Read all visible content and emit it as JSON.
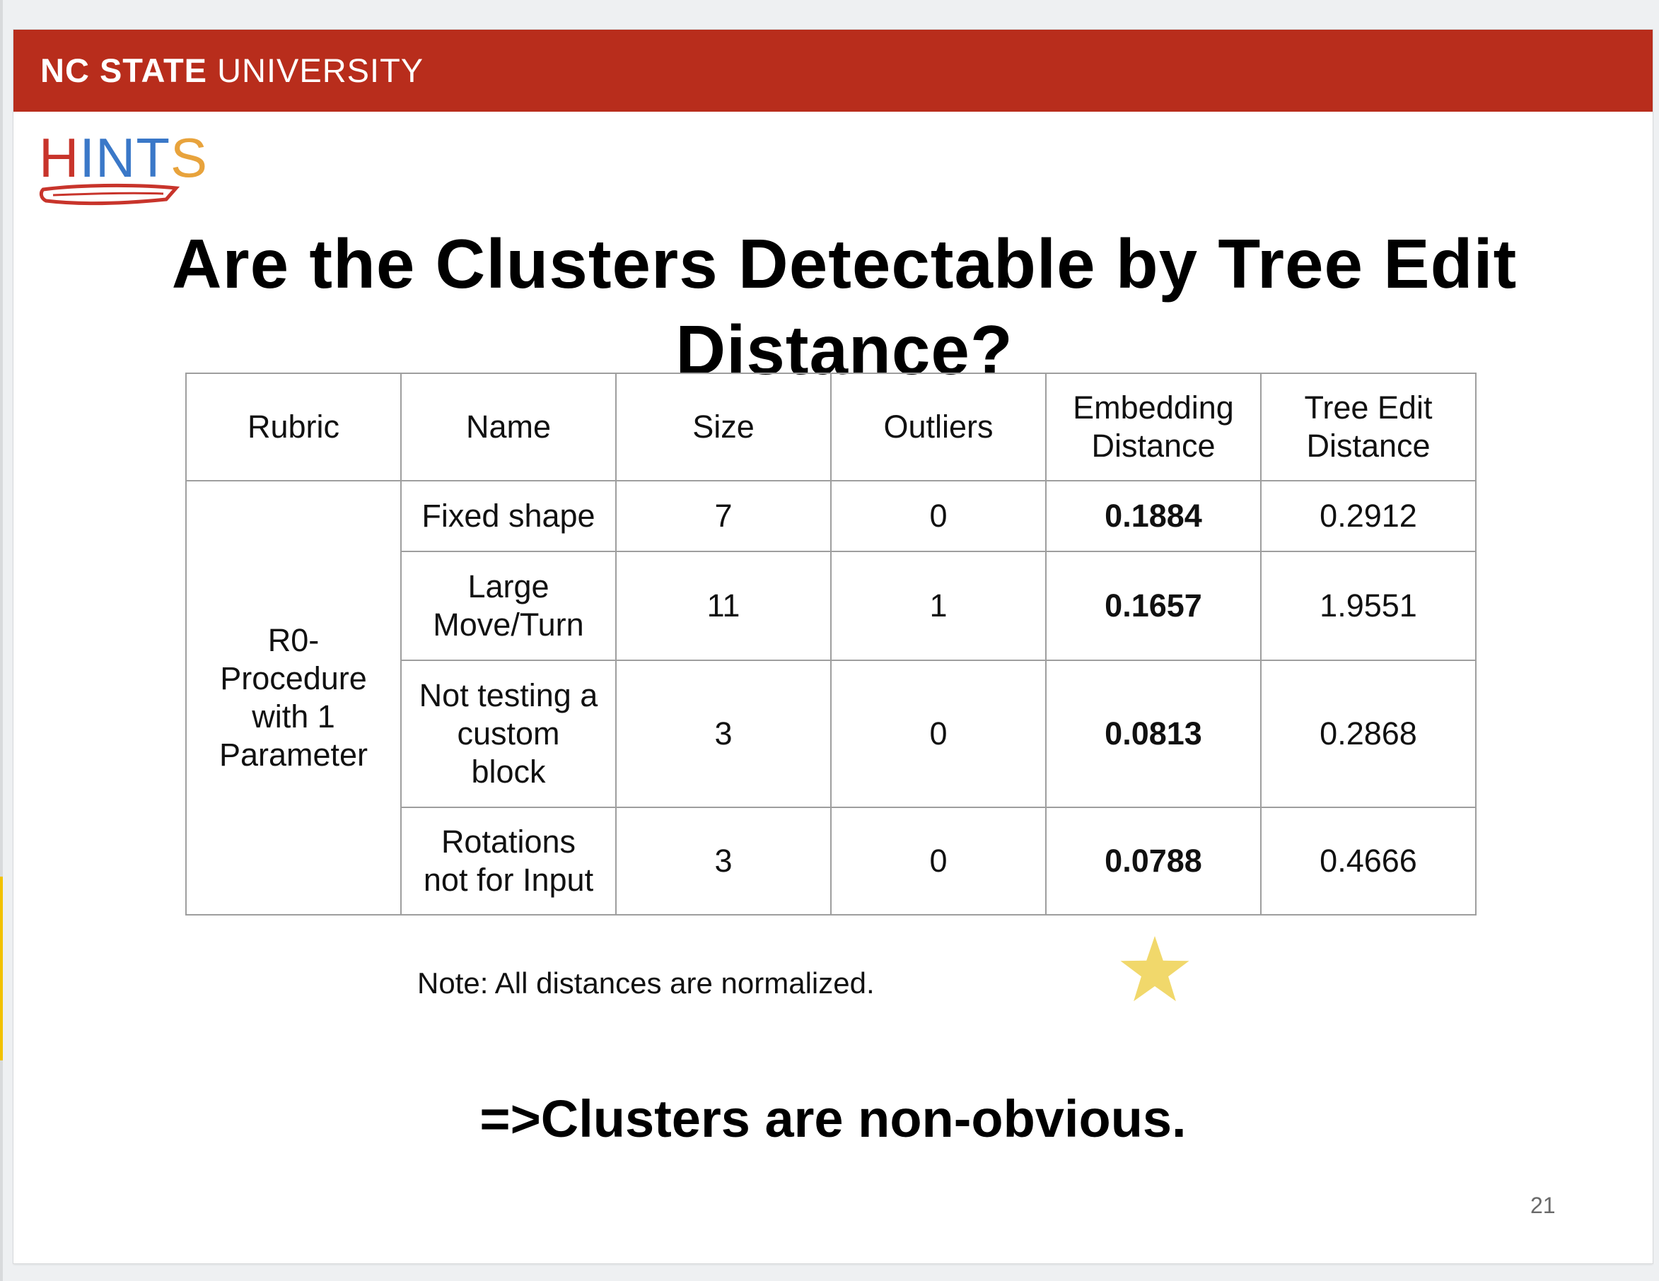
{
  "header": {
    "university_bold": "NC STATE",
    "university_rest": " UNIVERSITY",
    "logo_text": "HINTS",
    "logo_colors": [
      "#c8342b",
      "#3a78c8",
      "#3a78c8",
      "#3a78c8",
      "#e8a33c"
    ],
    "banner_color": "#b82d1c"
  },
  "slide": {
    "title": "Are the Clusters Detectable by Tree Edit Distance?",
    "note": "Note: All distances are normalized.",
    "conclusion": "=>Clusters are non-obvious.",
    "page_number": "21",
    "star_color": "#f1d86b"
  },
  "table": {
    "headers": [
      "Rubric",
      "Name",
      "Size",
      "Outliers",
      "Embedding Distance",
      "Tree Edit Distance"
    ],
    "rubric": "R0-\nProcedure\nwith 1\nParameter",
    "rows": [
      {
        "name": "Fixed shape",
        "size": "7",
        "outliers": "0",
        "embedding": "0.1884",
        "tree_edit": "0.2912"
      },
      {
        "name": "Large\nMove/Turn",
        "size": "11",
        "outliers": "1",
        "embedding": "0.1657",
        "tree_edit": "1.9551"
      },
      {
        "name": "Not testing a\ncustom\nblock",
        "size": "3",
        "outliers": "0",
        "embedding": "0.0813",
        "tree_edit": "0.2868"
      },
      {
        "name": "Rotations\nnot for Input",
        "size": "3",
        "outliers": "0",
        "embedding": "0.0788",
        "tree_edit": "0.4666"
      }
    ]
  }
}
